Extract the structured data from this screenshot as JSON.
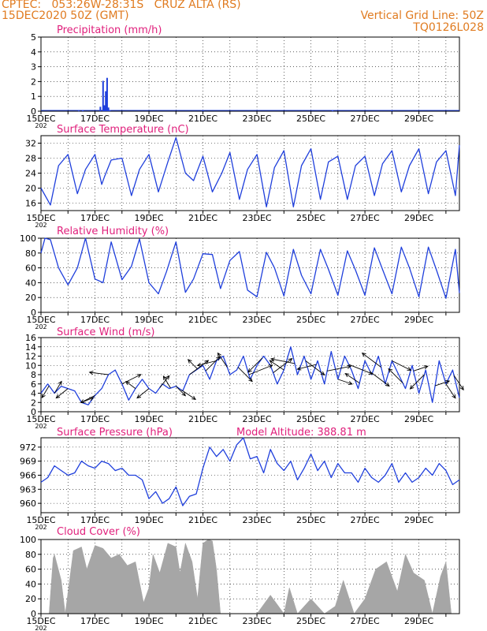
{
  "header": {
    "line1_left": "CPTEC:   053:26W-28:31S   CRUZ ALTA (RS)",
    "line2_left": "15DEC2020 50Z (GMT)",
    "line1_right": "Vertical Grid Line: 50Z",
    "line2_right": "TQ0126L028"
  },
  "colors": {
    "header": "#e07b20",
    "panel_title": "#e0207c",
    "series": "#1f3fdc",
    "cloud": "#a6a6a6",
    "wind_barb": "#000000"
  },
  "x_axis": {
    "labels": [
      "15DEC",
      "17DEC",
      "19DEC",
      "21DEC",
      "23DEC",
      "25DEC",
      "27DEC",
      "29DEC"
    ],
    "label_days": [
      0,
      2,
      4,
      6,
      8,
      10,
      12,
      14
    ],
    "range_days": [
      0,
      15.5
    ],
    "truncated_year_label": "202"
  },
  "panels": {
    "precip": {
      "title": "Precipitation (mm/h)",
      "yticks": [
        "0",
        "1",
        "2",
        "3",
        "4",
        "5"
      ]
    },
    "temp": {
      "title": "Surface Temperature (nC)",
      "yticks": [
        "16",
        "20",
        "24",
        "28",
        "32"
      ]
    },
    "rh": {
      "title": "Relative Humidity (%)",
      "yticks": [
        "0",
        "20",
        "40",
        "60",
        "80",
        "100"
      ]
    },
    "wind": {
      "title": "Surface Wind (m/s)",
      "yticks": [
        "0",
        "2",
        "4",
        "6",
        "8",
        "10",
        "12",
        "14",
        "16"
      ]
    },
    "pressure": {
      "title": "Surface Pressure (hPa)",
      "subtitle": "Model Altitude: 388.81 m",
      "yticks": [
        "960",
        "963",
        "966",
        "969",
        "972"
      ]
    },
    "cloud": {
      "title": "Cloud Cover (%)",
      "yticks": [
        "0",
        "20",
        "40",
        "60",
        "80",
        "100"
      ]
    }
  },
  "chart_data": [
    {
      "type": "bar",
      "id": "precip",
      "title": "Precipitation (mm/h)",
      "ylim": [
        0,
        5
      ],
      "x": [
        1.4,
        1.55,
        2.2,
        2.3,
        2.35,
        2.4,
        2.45,
        2.5,
        2.55,
        6.0,
        10.8,
        13.0
      ],
      "values": [
        0.02,
        0.03,
        0.3,
        2.05,
        0.4,
        1.35,
        2.25,
        0.25,
        0.05,
        0.05,
        0.03,
        0.03
      ]
    },
    {
      "type": "line",
      "id": "temp",
      "title": "Surface Temperature (nC)",
      "ylim": [
        14,
        34
      ],
      "x": [
        0,
        0.35,
        0.65,
        1.0,
        1.35,
        1.65,
        2.0,
        2.25,
        2.35,
        2.6,
        3.0,
        3.35,
        3.65,
        4.0,
        4.35,
        4.7,
        5.0,
        5.35,
        5.65,
        6.0,
        6.35,
        6.7,
        7.0,
        7.35,
        7.65,
        8.0,
        8.35,
        8.65,
        9.0,
        9.35,
        9.65,
        10.0,
        10.35,
        10.65,
        11.0,
        11.35,
        11.65,
        12.0,
        12.35,
        12.65,
        13.0,
        13.35,
        13.65,
        14.0,
        14.35,
        14.65,
        15.0,
        15.35,
        15.5
      ],
      "values": [
        20,
        15.5,
        26,
        29,
        18.5,
        25,
        29,
        21,
        23,
        27.5,
        28,
        18,
        25,
        29,
        19,
        27,
        33.5,
        24,
        22,
        28.5,
        19,
        24,
        29.5,
        17,
        25,
        29,
        15,
        25.5,
        30,
        15,
        26,
        30.5,
        17,
        27,
        28.5,
        17,
        26,
        28.5,
        18,
        26.5,
        30,
        19,
        26,
        30.5,
        18.5,
        27,
        30,
        18,
        31.5
      ]
    },
    {
      "type": "line",
      "id": "rh",
      "title": "Relative Humidity (%)",
      "ylim": [
        0,
        100
      ],
      "x": [
        0,
        0.15,
        0.35,
        0.65,
        1.0,
        1.35,
        1.65,
        2.0,
        2.3,
        2.6,
        3.0,
        3.35,
        3.65,
        4.0,
        4.35,
        4.65,
        5.0,
        5.35,
        5.65,
        6.0,
        6.35,
        6.65,
        7.0,
        7.35,
        7.65,
        8.0,
        8.35,
        8.65,
        9.0,
        9.35,
        9.65,
        10.0,
        10.35,
        10.65,
        11.0,
        11.35,
        11.65,
        12.0,
        12.35,
        12.65,
        13.0,
        13.35,
        13.65,
        14.0,
        14.35,
        14.65,
        15.0,
        15.35,
        15.5
      ],
      "values": [
        80,
        100,
        98,
        60,
        37,
        60,
        100,
        45,
        40,
        95,
        44,
        62,
        99,
        40,
        25,
        55,
        95,
        27,
        45,
        79,
        78,
        32,
        70,
        82,
        30,
        21,
        81,
        60,
        22,
        85,
        50,
        25,
        85,
        58,
        23,
        83,
        57,
        23,
        87,
        58,
        25,
        88,
        60,
        21,
        88,
        57,
        19,
        85,
        26
      ]
    },
    {
      "type": "line",
      "id": "wind_speed",
      "title": "Surface Wind (m/s)",
      "ylim": [
        0,
        16
      ],
      "x": [
        0,
        0.25,
        0.5,
        0.75,
        1.0,
        1.25,
        1.5,
        1.75,
        2.0,
        2.25,
        2.5,
        2.75,
        3.0,
        3.25,
        3.5,
        3.75,
        4.0,
        4.25,
        4.5,
        4.75,
        5.0,
        5.25,
        5.5,
        5.75,
        6.0,
        6.25,
        6.5,
        6.75,
        7.0,
        7.25,
        7.5,
        7.75,
        8.0,
        8.25,
        8.5,
        8.75,
        9.0,
        9.25,
        9.5,
        9.75,
        10.0,
        10.25,
        10.5,
        10.75,
        11.0,
        11.25,
        11.5,
        11.75,
        12.0,
        12.25,
        12.5,
        12.75,
        13.0,
        13.25,
        13.5,
        13.75,
        14.0,
        14.25,
        14.5,
        14.75,
        15.0,
        15.25,
        15.5
      ],
      "values": [
        4,
        6,
        4,
        5.5,
        5,
        4.5,
        2,
        1.5,
        3.5,
        5,
        8,
        9,
        6,
        2.5,
        5,
        7,
        5,
        4,
        6,
        5,
        5.5,
        4.5,
        8,
        9,
        10,
        7,
        11,
        12,
        8,
        9,
        12,
        7,
        10,
        12,
        10,
        6,
        9,
        14,
        8,
        12,
        7,
        11,
        6,
        13,
        7,
        12,
        9,
        5,
        11,
        8,
        12,
        6,
        11,
        8,
        5,
        10,
        4,
        9,
        2,
        11,
        6,
        9,
        3
      ]
    },
    {
      "type": "line",
      "id": "pressure",
      "title": "Surface Pressure (hPa)",
      "ylim": [
        958,
        974
      ],
      "x": [
        0,
        0.25,
        0.5,
        0.75,
        1.0,
        1.25,
        1.5,
        1.75,
        2.0,
        2.25,
        2.5,
        2.75,
        3.0,
        3.25,
        3.5,
        3.75,
        4.0,
        4.25,
        4.5,
        4.75,
        5.0,
        5.25,
        5.5,
        5.75,
        6.0,
        6.25,
        6.5,
        6.75,
        7.0,
        7.25,
        7.5,
        7.75,
        8.0,
        8.25,
        8.5,
        8.75,
        9.0,
        9.25,
        9.5,
        9.75,
        10.0,
        10.25,
        10.5,
        10.75,
        11.0,
        11.25,
        11.5,
        11.75,
        12.0,
        12.25,
        12.5,
        12.75,
        13.0,
        13.25,
        13.5,
        13.75,
        14.0,
        14.25,
        14.5,
        14.75,
        15.0,
        15.25,
        15.5
      ],
      "values": [
        964.5,
        965.5,
        968,
        967,
        966,
        966.5,
        969,
        968,
        967.5,
        969,
        968.5,
        967,
        967.5,
        966,
        966,
        965,
        961,
        962.5,
        960,
        961,
        963.5,
        959.5,
        961.5,
        962,
        967.5,
        972,
        970,
        971.5,
        969,
        972.5,
        974,
        969.5,
        970,
        966.5,
        971.5,
        968.5,
        967,
        969,
        965,
        967.5,
        970.5,
        967,
        969,
        965.5,
        968.5,
        966.5,
        966.5,
        964.5,
        967.5,
        965.5,
        964.5,
        966,
        968.5,
        964.5,
        966.5,
        964.5,
        965.5,
        967.5,
        966,
        968.5,
        967,
        964,
        965
      ]
    },
    {
      "type": "area",
      "id": "cloud",
      "title": "Cloud Cover (%)",
      "ylim": [
        0,
        100
      ],
      "x": [
        0,
        0.3,
        0.45,
        0.5,
        0.75,
        0.9,
        1.2,
        1.5,
        1.7,
        2.0,
        2.3,
        2.6,
        2.9,
        3.2,
        3.5,
        3.8,
        4.0,
        4.15,
        4.4,
        4.7,
        5.0,
        5.15,
        5.35,
        5.6,
        5.8,
        6.0,
        6.2,
        6.35,
        6.5,
        6.65,
        7.0,
        7.5,
        8.0,
        8.5,
        9.0,
        9.2,
        9.5,
        10.0,
        10.5,
        10.9,
        11.2,
        11.6,
        12.0,
        12.4,
        12.8,
        13.2,
        13.5,
        13.8,
        14.2,
        14.5,
        14.8,
        15.0,
        15.2,
        15.5
      ],
      "values": [
        0,
        0,
        75,
        80,
        45,
        0,
        85,
        90,
        60,
        92,
        88,
        75,
        80,
        65,
        70,
        15,
        35,
        80,
        55,
        95,
        90,
        55,
        95,
        70,
        20,
        95,
        100,
        98,
        60,
        0,
        0,
        0,
        0,
        25,
        0,
        35,
        0,
        20,
        0,
        10,
        45,
        0,
        20,
        60,
        70,
        30,
        80,
        55,
        45,
        0,
        50,
        70,
        0,
        0
      ]
    },
    {
      "type": "scatter",
      "id": "wind_vectors",
      "x": [
        0.3,
        0.5,
        1.0,
        1.5,
        2.0,
        2.5,
        3.0,
        3.5,
        4.0,
        4.4,
        4.8,
        5.0,
        5.2,
        5.5,
        5.8,
        6.1,
        6.5,
        6.9,
        7.3,
        7.7,
        8.2,
        8.6,
        9.0,
        9.4,
        9.8,
        10.2,
        10.6,
        11.0,
        11.4,
        11.8,
        12.2,
        12.6,
        13.0,
        13.4,
        13.8,
        14.2,
        14.6,
        15.0,
        15.3
      ],
      "u": [
        -1.5,
        1.5,
        -2.5,
        2.5,
        -3,
        -4,
        4,
        -2,
        -2.5,
        2,
        -1.5,
        2,
        3,
        4,
        -2,
        3,
        -4,
        -2,
        3,
        5,
        -3,
        4,
        -3,
        -5,
        4,
        -4,
        5,
        3,
        5,
        -3,
        4,
        -4,
        4,
        -3,
        3,
        -3,
        3,
        2,
        2
      ],
      "v": [
        -2.5,
        2.5,
        -2,
        1,
        -1.5,
        0.5,
        2,
        1.5,
        -2,
        2.5,
        2.5,
        -2,
        -2,
        3,
        2,
        3,
        -1,
        3,
        -3,
        2,
        -3,
        3,
        2,
        1,
        -3,
        -1,
        1,
        -1,
        -2,
        2,
        -3,
        3,
        -2,
        3,
        1,
        -3,
        1,
        -3,
        -3
      ]
    }
  ]
}
